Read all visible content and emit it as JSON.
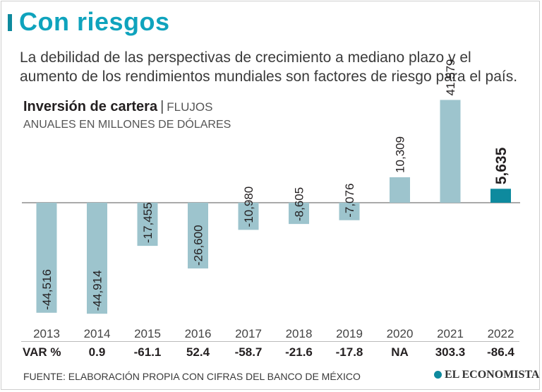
{
  "header": {
    "title": "Con riesgos",
    "subtitle": "La debilidad de las perspectivas de crecimiento a mediano plazo y el aumento de los rendimientos mundiales son factores de riesgo para el país."
  },
  "chart_data": {
    "type": "bar",
    "title_bold": "Inversión de cartera",
    "title_light": "FLUJOS",
    "unit": "ANUALES EN MILLONES DE DÓLARES",
    "categories": [
      "2013",
      "2014",
      "2015",
      "2016",
      "2017",
      "2018",
      "2019",
      "2020",
      "2021",
      "2022"
    ],
    "values": [
      -44516,
      -44914,
      -17455,
      -26600,
      -10980,
      -8605,
      -7076,
      10309,
      41579,
      5635
    ],
    "labels": [
      "-44,516",
      "-44,914",
      "-17,455",
      "-26,600",
      "-10,980",
      "-8,605",
      "-7,076",
      "10,309",
      "41,579",
      "5,635"
    ],
    "highlight_index": 9,
    "bar_color": "#9dc4cd",
    "highlight_color": "#0e8a9e"
  },
  "variation": {
    "label": "VAR %",
    "values": [
      "0.9",
      "-61.1",
      "52.4",
      "-58.7",
      "-21.6",
      "-17.8",
      "NA",
      "303.3",
      "-86.4"
    ]
  },
  "footer": {
    "source": "FUENTE: ELABORACIÓN PROPIA CON CIFRAS DEL BANCO DE MÉXICO",
    "brand": "EL ECONOMISTA"
  }
}
